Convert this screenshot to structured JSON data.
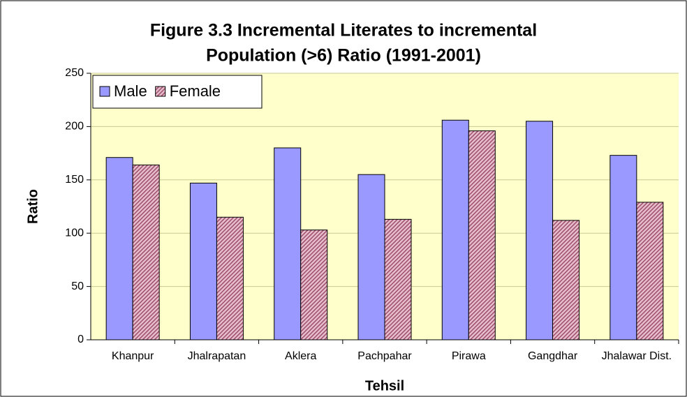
{
  "chart_data": {
    "type": "bar",
    "title": [
      "Figure 3.3 Incremental Literates to incremental",
      "Population (>6) Ratio (1991-2001)"
    ],
    "x_label": "Tehsil",
    "y_label": "Ratio",
    "categories": [
      "Khanpur",
      "Jhalrapatan",
      "Aklera",
      "Pachpahar",
      "Pirawa",
      "Gangdhar",
      "Jhalawar Dist."
    ],
    "series": [
      {
        "name": "Male",
        "color": "#9999ff",
        "values": [
          171,
          147,
          180,
          155,
          206,
          205,
          173
        ]
      },
      {
        "name": "Female",
        "color": "#cc99aa",
        "values": [
          164,
          115,
          103,
          113,
          196,
          112,
          129
        ]
      }
    ],
    "ylim": [
      0,
      250
    ],
    "yticks": [
      0,
      50,
      100,
      150,
      200,
      250
    ],
    "grid": true,
    "legend": "upper left"
  }
}
